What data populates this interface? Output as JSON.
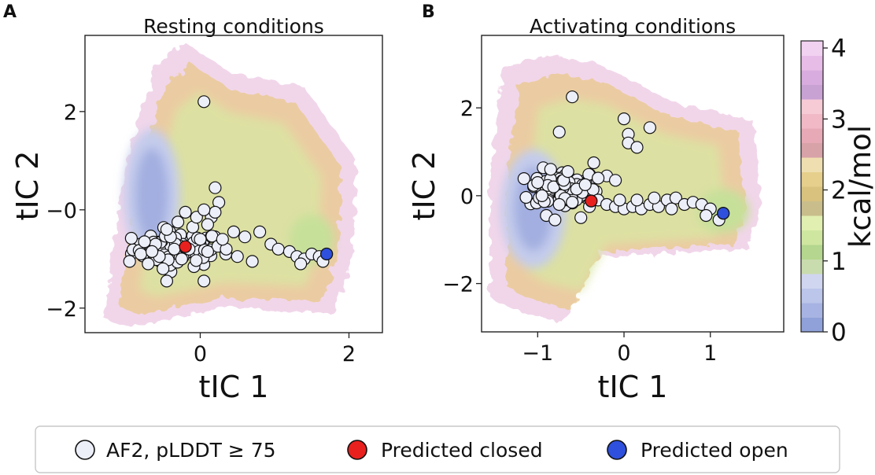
{
  "chart_data": [
    {
      "type": "scatter",
      "panel": "A",
      "title": "Resting conditions",
      "xlabel": "tIC 1",
      "ylabel": "tIC 2",
      "xlim": [
        -1.55,
        2.45
      ],
      "ylim": [
        -2.5,
        3.55
      ],
      "xticks": [
        {
          "value": 0,
          "label": "0"
        },
        {
          "value": 2,
          "label": "2"
        }
      ],
      "yticks": [
        {
          "value": -2,
          "label": "−2"
        },
        {
          "value": 0,
          "label": "−0"
        },
        {
          "value": 2,
          "label": "2"
        }
      ],
      "background": "free-energy landscape (kcal/mol)",
      "landscape": {
        "basin": [
          -0.65,
          0.3
        ],
        "secondary_basin": [
          1.5,
          -0.6
        ],
        "outer_region": [
          [
            -1.3,
            -2.2
          ],
          [
            -1.0,
            1.0
          ],
          [
            -0.6,
            2.9
          ],
          [
            -0.2,
            3.4
          ],
          [
            0.4,
            2.8
          ],
          [
            1.4,
            2.5
          ],
          [
            2.1,
            1.0
          ],
          [
            2.05,
            -1.0
          ],
          [
            1.8,
            -2.1
          ],
          [
            0.3,
            -2.0
          ],
          [
            -1.0,
            -2.4
          ]
        ]
      },
      "series": [
        {
          "name": "AF2, pLDDT ≥ 75",
          "points": [
            [
              0.05,
              2.2
            ],
            [
              0.2,
              0.45
            ],
            [
              0.25,
              0.15
            ],
            [
              0.15,
              -0.15
            ],
            [
              -0.45,
              -1.45
            ],
            [
              0.05,
              -1.45
            ],
            [
              0.2,
              -0.05
            ],
            [
              0.45,
              -0.45
            ],
            [
              0.6,
              -0.55
            ],
            [
              0.8,
              -0.45
            ],
            [
              0.95,
              -0.7
            ],
            [
              1.05,
              -0.8
            ],
            [
              1.2,
              -0.85
            ],
            [
              1.3,
              -0.95
            ],
            [
              1.4,
              -1.0
            ],
            [
              1.5,
              -0.9
            ],
            [
              1.6,
              -0.95
            ],
            [
              1.65,
              -1.05
            ],
            [
              1.35,
              -1.1
            ],
            [
              0.7,
              -1.05
            ],
            [
              0.5,
              -0.95
            ],
            [
              0.35,
              -0.8
            ],
            [
              -0.95,
              -1.05
            ],
            [
              -0.8,
              -0.9
            ],
            [
              -0.7,
              -1.1
            ],
            [
              -0.6,
              -0.7
            ],
            [
              -0.5,
              -1.2
            ],
            [
              -0.4,
              -0.55
            ],
            [
              -0.3,
              -0.25
            ],
            [
              -0.2,
              -0.05
            ],
            [
              -0.1,
              -0.35
            ],
            [
              0.0,
              -0.6
            ],
            [
              0.1,
              -0.85
            ],
            [
              -0.25,
              -1.0
            ],
            [
              -0.55,
              -0.95
            ],
            [
              -0.75,
              -0.65
            ],
            [
              -0.15,
              -0.8
            ],
            [
              0.3,
              -0.6
            ],
            [
              -0.35,
              -0.8
            ],
            [
              -0.65,
              -0.85
            ],
            [
              0.1,
              -0.3
            ],
            [
              -0.05,
              -0.15
            ],
            [
              0.05,
              0.0
            ],
            [
              -0.45,
              -0.4
            ]
          ],
          "cluster": {
            "center": [
              -0.3,
              -0.8
            ],
            "spread": [
              0.38,
              0.22
            ],
            "count": 85
          }
        },
        {
          "name": "Predicted closed",
          "points": [
            [
              -0.2,
              -0.75
            ]
          ]
        },
        {
          "name": "Predicted open",
          "points": [
            [
              1.7,
              -0.9
            ]
          ]
        }
      ]
    },
    {
      "type": "scatter",
      "panel": "B",
      "title": "Activating conditions",
      "xlabel": "tIC 1",
      "ylabel": "tIC 2",
      "xlim": [
        -1.65,
        1.85
      ],
      "ylim": [
        -3.1,
        3.65
      ],
      "xticks": [
        {
          "value": -1,
          "label": "−1"
        },
        {
          "value": 0,
          "label": "0"
        },
        {
          "value": 1,
          "label": "1"
        }
      ],
      "yticks": [
        {
          "value": -2,
          "label": "−2"
        },
        {
          "value": 0,
          "label": "0"
        },
        {
          "value": 2,
          "label": "2"
        }
      ],
      "background": "free-energy landscape (kcal/mol)",
      "landscape": {
        "basin": [
          -1.05,
          -0.3
        ],
        "secondary_basin": [
          1.15,
          -0.35
        ],
        "outer_region": [
          [
            -1.55,
            -2.3
          ],
          [
            -1.55,
            0.5
          ],
          [
            -1.4,
            2.9
          ],
          [
            -0.9,
            3.2
          ],
          [
            -0.3,
            3.0
          ],
          [
            0.6,
            2.1
          ],
          [
            1.5,
            1.7
          ],
          [
            1.6,
            -0.2
          ],
          [
            1.45,
            -1.2
          ],
          [
            0.6,
            -1.3
          ],
          [
            -0.3,
            -1.4
          ],
          [
            -0.7,
            -2.9
          ],
          [
            -1.3,
            -2.6
          ]
        ]
      },
      "series": [
        {
          "name": "AF2, pLDDT ≥ 75",
          "points": [
            [
              -0.6,
              2.25
            ],
            [
              -0.75,
              1.45
            ],
            [
              0.0,
              1.75
            ],
            [
              0.3,
              1.55
            ],
            [
              0.05,
              1.4
            ],
            [
              0.05,
              1.2
            ],
            [
              0.15,
              1.1
            ],
            [
              -0.35,
              0.75
            ],
            [
              -0.2,
              0.45
            ],
            [
              -0.1,
              0.35
            ],
            [
              -0.9,
              -0.45
            ],
            [
              -0.8,
              -0.55
            ],
            [
              -0.5,
              -0.5
            ],
            [
              -0.4,
              -0.25
            ],
            [
              -0.3,
              -0.1
            ],
            [
              -0.2,
              -0.2
            ],
            [
              -0.1,
              -0.25
            ],
            [
              0.0,
              -0.3
            ],
            [
              0.1,
              -0.25
            ],
            [
              0.2,
              -0.3
            ],
            [
              0.3,
              -0.2
            ],
            [
              0.4,
              -0.25
            ],
            [
              0.5,
              -0.1
            ],
            [
              0.6,
              -0.05
            ],
            [
              0.7,
              -0.2
            ],
            [
              0.8,
              -0.15
            ],
            [
              0.9,
              -0.2
            ],
            [
              1.0,
              -0.3
            ],
            [
              1.1,
              -0.55
            ],
            [
              0.95,
              -0.45
            ],
            [
              -0.7,
              0.35
            ],
            [
              -0.55,
              0.15
            ],
            [
              -1.0,
              0.3
            ],
            [
              -0.95,
              0.0
            ],
            [
              -0.85,
              0.6
            ],
            [
              -0.65,
              0.55
            ],
            [
              -0.45,
              0.25
            ],
            [
              -0.3,
              0.4
            ],
            [
              -0.75,
              -0.2
            ],
            [
              -0.6,
              -0.15
            ],
            [
              0.55,
              -0.3
            ],
            [
              0.35,
              -0.05
            ],
            [
              0.15,
              -0.1
            ],
            [
              -0.05,
              -0.1
            ]
          ],
          "cluster": {
            "center": [
              -0.7,
              0.15
            ],
            "spread": [
              0.25,
              0.28
            ],
            "count": 90
          }
        },
        {
          "name": "Predicted closed",
          "points": [
            [
              -0.38,
              -0.12
            ]
          ]
        },
        {
          "name": "Predicted open",
          "points": [
            [
              1.15,
              -0.4
            ]
          ]
        }
      ]
    }
  ],
  "colorbar": {
    "label": "kcal/mol",
    "range": [
      0,
      4.1
    ],
    "ticks": [
      {
        "value": 0,
        "label": "0"
      },
      {
        "value": 1,
        "label": "1"
      },
      {
        "value": 2,
        "label": "2"
      },
      {
        "value": 3,
        "label": "3"
      },
      {
        "value": 4,
        "label": "4"
      }
    ],
    "bands": [
      "#8fa1d8",
      "#a7b3e2",
      "#bcc5ea",
      "#d0d6f0",
      "#c9dcae",
      "#b4d68e",
      "#cfe6a0",
      "#e1efb0",
      "#c9bd8c",
      "#d8c27e",
      "#e6cf8c",
      "#efdfb0",
      "#d7a2a8",
      "#e8a9b6",
      "#f1b9c6",
      "#f6cbd6",
      "#c9a2d4",
      "#d8acde",
      "#e7bde8",
      "#f2d2f1"
    ]
  },
  "legend": {
    "placement": "bottom-center",
    "items": [
      {
        "label": "AF2, pLDDT ≥ 75",
        "color": "#eceef8"
      },
      {
        "label": "Predicted closed",
        "color": "#e8211e"
      },
      {
        "label": "Predicted open",
        "color": "#2e50dc"
      }
    ]
  },
  "colors": {
    "af2_fill": "#eceef8",
    "closed_fill": "#e8211e",
    "open_fill": "#2e50dc",
    "marker_edge": "#111111"
  }
}
